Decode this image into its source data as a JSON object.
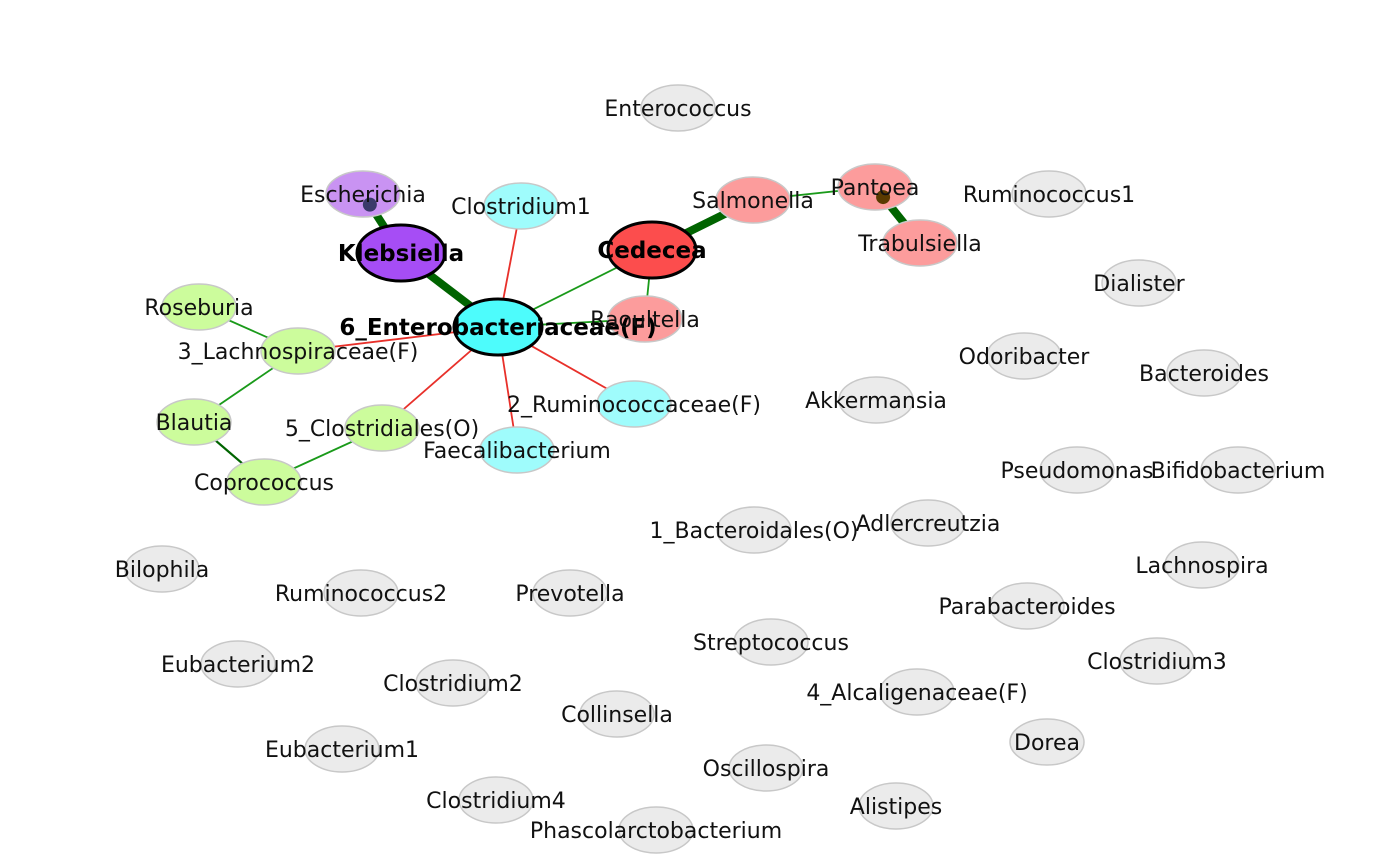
{
  "colors": {
    "background": "#ffffff",
    "isolated_node": "#ebebeb",
    "node_border": "#c8c8c8",
    "hub_border": "#000000",
    "positive_edge": "#1a9a1a",
    "strong_positive_edge": "#006400",
    "negative_edge": "#e8302a",
    "edge_end_marker": "#5a3a00"
  },
  "nodes": [
    {
      "id": "enterococcus",
      "label": "Enterococcus",
      "fill": "#ebebeb"
    },
    {
      "id": "escherichia",
      "label": "Escherichia",
      "fill": "#c993f2"
    },
    {
      "id": "klebsiella",
      "label": "Klebsiella",
      "fill": "#a64df5",
      "hub": true
    },
    {
      "id": "clostridium1",
      "label": "Clostridium1",
      "fill": "#9ffcfc"
    },
    {
      "id": "salmonella",
      "label": "Salmonella",
      "fill": "#fc9c9c"
    },
    {
      "id": "cedecea",
      "label": "Cedecea",
      "fill": "#fc4d4d",
      "hub": true
    },
    {
      "id": "pantoea",
      "label": "Pantoea",
      "fill": "#fc9c9c"
    },
    {
      "id": "trabulsiella",
      "label": "Trabulsiella",
      "fill": "#fc9c9c"
    },
    {
      "id": "ruminococcus1",
      "label": "Ruminococcus1",
      "fill": "#ebebeb"
    },
    {
      "id": "dialister",
      "label": "Dialister",
      "fill": "#ebebeb"
    },
    {
      "id": "roseburia",
      "label": "Roseburia",
      "fill": "#ccfc9c"
    },
    {
      "id": "enterobacteriaceae",
      "label": "6_Enterobacteriaceae(F)",
      "fill": "#4dfcfc",
      "hub": true
    },
    {
      "id": "raoultella",
      "label": "Raoultella",
      "fill": "#fc9c9c"
    },
    {
      "id": "lachnospiraceae",
      "label": "3_Lachnospiraceae(F)",
      "fill": "#ccfc9c"
    },
    {
      "id": "odoribacter",
      "label": "Odoribacter",
      "fill": "#ebebeb"
    },
    {
      "id": "bacteroides",
      "label": "Bacteroides",
      "fill": "#ebebeb"
    },
    {
      "id": "akkermansia",
      "label": "Akkermansia",
      "fill": "#ebebeb"
    },
    {
      "id": "ruminococcaceae",
      "label": "2_Ruminococcaceae(F)",
      "fill": "#9ffcfc"
    },
    {
      "id": "blautia",
      "label": "Blautia",
      "fill": "#ccfc9c"
    },
    {
      "id": "clostridiales",
      "label": "5_Clostridiales(O)",
      "fill": "#ccfc9c"
    },
    {
      "id": "faecalibacterium",
      "label": "Faecalibacterium",
      "fill": "#9ffcfc"
    },
    {
      "id": "pseudomonas",
      "label": "Pseudomonas",
      "fill": "#ebebeb"
    },
    {
      "id": "bifidobacterium",
      "label": "Bifidobacterium",
      "fill": "#ebebeb"
    },
    {
      "id": "coprococcus",
      "label": "Coprococcus",
      "fill": "#ccfc9c"
    },
    {
      "id": "adlercreutzia",
      "label": "Adlercreutzia",
      "fill": "#ebebeb"
    },
    {
      "id": "bacteroidales",
      "label": "1_Bacteroidales(O)",
      "fill": "#ebebeb"
    },
    {
      "id": "lachnospira",
      "label": "Lachnospira",
      "fill": "#ebebeb"
    },
    {
      "id": "bilophila",
      "label": "Bilophila",
      "fill": "#ebebeb"
    },
    {
      "id": "ruminococcus2",
      "label": "Ruminococcus2",
      "fill": "#ebebeb"
    },
    {
      "id": "prevotella",
      "label": "Prevotella",
      "fill": "#ebebeb"
    },
    {
      "id": "parabacteroides",
      "label": "Parabacteroides",
      "fill": "#ebebeb"
    },
    {
      "id": "streptococcus",
      "label": "Streptococcus",
      "fill": "#ebebeb"
    },
    {
      "id": "eubacterium2",
      "label": "Eubacterium2",
      "fill": "#ebebeb"
    },
    {
      "id": "clostridium3",
      "label": "Clostridium3",
      "fill": "#ebebeb"
    },
    {
      "id": "clostridium2",
      "label": "Clostridium2",
      "fill": "#ebebeb"
    },
    {
      "id": "alcaligenaceae",
      "label": "4_Alcaligenaceae(F)",
      "fill": "#ebebeb"
    },
    {
      "id": "collinsella",
      "label": "Collinsella",
      "fill": "#ebebeb"
    },
    {
      "id": "dorea",
      "label": "Dorea",
      "fill": "#ebebeb"
    },
    {
      "id": "eubacterium1",
      "label": "Eubacterium1",
      "fill": "#ebebeb"
    },
    {
      "id": "oscillospira",
      "label": "Oscillospira",
      "fill": "#ebebeb"
    },
    {
      "id": "clostridium4",
      "label": "Clostridium4",
      "fill": "#ebebeb"
    },
    {
      "id": "alistipes",
      "label": "Alistipes",
      "fill": "#ebebeb"
    },
    {
      "id": "phascolarctobacterium",
      "label": "Phascolarctobacterium",
      "fill": "#ebebeb"
    }
  ],
  "edges": [
    {
      "source": "escherichia",
      "target": "klebsiella",
      "sign": "positive",
      "strength": "strong",
      "end_marker": true
    },
    {
      "source": "klebsiella",
      "target": "enterobacteriaceae",
      "sign": "positive",
      "strength": "strong"
    },
    {
      "source": "salmonella",
      "target": "cedecea",
      "sign": "positive",
      "strength": "strong"
    },
    {
      "source": "salmonella",
      "target": "pantoea",
      "sign": "positive",
      "strength": "normal"
    },
    {
      "source": "pantoea",
      "target": "trabulsiella",
      "sign": "positive",
      "strength": "strong",
      "end_marker": true
    },
    {
      "source": "cedecea",
      "target": "enterobacteriaceae",
      "sign": "positive",
      "strength": "normal"
    },
    {
      "source": "cedecea",
      "target": "raoultella",
      "sign": "positive",
      "strength": "normal"
    },
    {
      "source": "raoultella",
      "target": "enterobacteriaceae",
      "sign": "positive",
      "strength": "normal"
    },
    {
      "source": "clostridium1",
      "target": "enterobacteriaceae",
      "sign": "negative",
      "strength": "normal"
    },
    {
      "source": "enterobacteriaceae",
      "target": "lachnospiraceae",
      "sign": "negative",
      "strength": "normal"
    },
    {
      "source": "enterobacteriaceae",
      "target": "ruminococcaceae",
      "sign": "negative",
      "strength": "normal"
    },
    {
      "source": "enterobacteriaceae",
      "target": "clostridiales",
      "sign": "negative",
      "strength": "normal"
    },
    {
      "source": "enterobacteriaceae",
      "target": "faecalibacterium",
      "sign": "negative",
      "strength": "normal"
    },
    {
      "source": "roseburia",
      "target": "lachnospiraceae",
      "sign": "positive",
      "strength": "normal"
    },
    {
      "source": "lachnospiraceae",
      "target": "blautia",
      "sign": "positive",
      "strength": "normal"
    },
    {
      "source": "blautia",
      "target": "coprococcus",
      "sign": "positive",
      "strength": "medium"
    },
    {
      "source": "coprococcus",
      "target": "clostridiales",
      "sign": "positive",
      "strength": "normal"
    }
  ]
}
